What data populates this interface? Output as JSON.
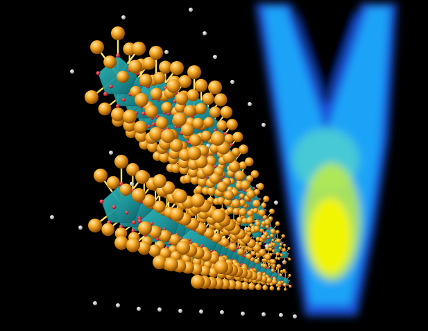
{
  "image": {
    "subject": "crystal-lattice-with-spectral-map",
    "colors": {
      "background": "#000000",
      "lattice_atom": "#f5a623",
      "atom_highlight": "#ffe7a8",
      "atom_shadow": "#8a4a00",
      "bond": "#ffe36a",
      "octahedron": "#1b8f93",
      "octahedron_dark": "#0d5a60",
      "octahedron_light": "#35c0c2",
      "oxygen": "#e0202a",
      "hydrogen": "#e8e8e8",
      "map_low": "#1f5fff",
      "map_mid": "#19b8ff",
      "map_high": "#f6f600"
    }
  }
}
